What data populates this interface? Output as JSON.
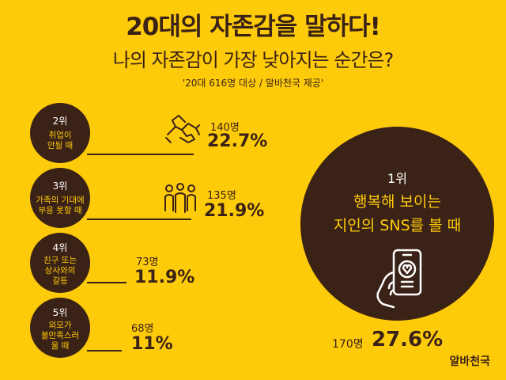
{
  "header": {
    "title": "20대의 자존감을 말하다!",
    "subtitle": "나의 자존감이 가장 낮아지는 순간은?",
    "source": "'20대 616명 대상 / 알바천국 제공'"
  },
  "chart_data": {
    "type": "bar",
    "title": "나의 자존감이 가장 낮아지는 순간은?",
    "items": [
      {
        "rank": "1위",
        "label": "행복해 보이는\n지인의 SNS를 볼 때",
        "count": "170명",
        "percent": "27.6%",
        "value": 27.6
      },
      {
        "rank": "2위",
        "label": "취업이\n안될 때",
        "count": "140명",
        "percent": "22.7%",
        "value": 22.7
      },
      {
        "rank": "3위",
        "label": "가족의 기대에\n부응 못할 때",
        "count": "135명",
        "percent": "21.9%",
        "value": 21.9
      },
      {
        "rank": "4위",
        "label": "친구 또는\n상사와의\n갈등",
        "count": "73명",
        "percent": "11.9%",
        "value": 11.9
      },
      {
        "rank": "5위",
        "label": "외모가\n불만족스러\n울 때",
        "count": "68명",
        "percent": "11%",
        "value": 11.0
      }
    ]
  },
  "icons": {
    "rank2": "handshake-icon",
    "rank3": "family-icon",
    "rank1": "smartphone-heart-icon"
  },
  "colors": {
    "background": "#fecb0a",
    "accent": "#3b2216",
    "label": "#fecb0a"
  },
  "brand": "알바천국"
}
